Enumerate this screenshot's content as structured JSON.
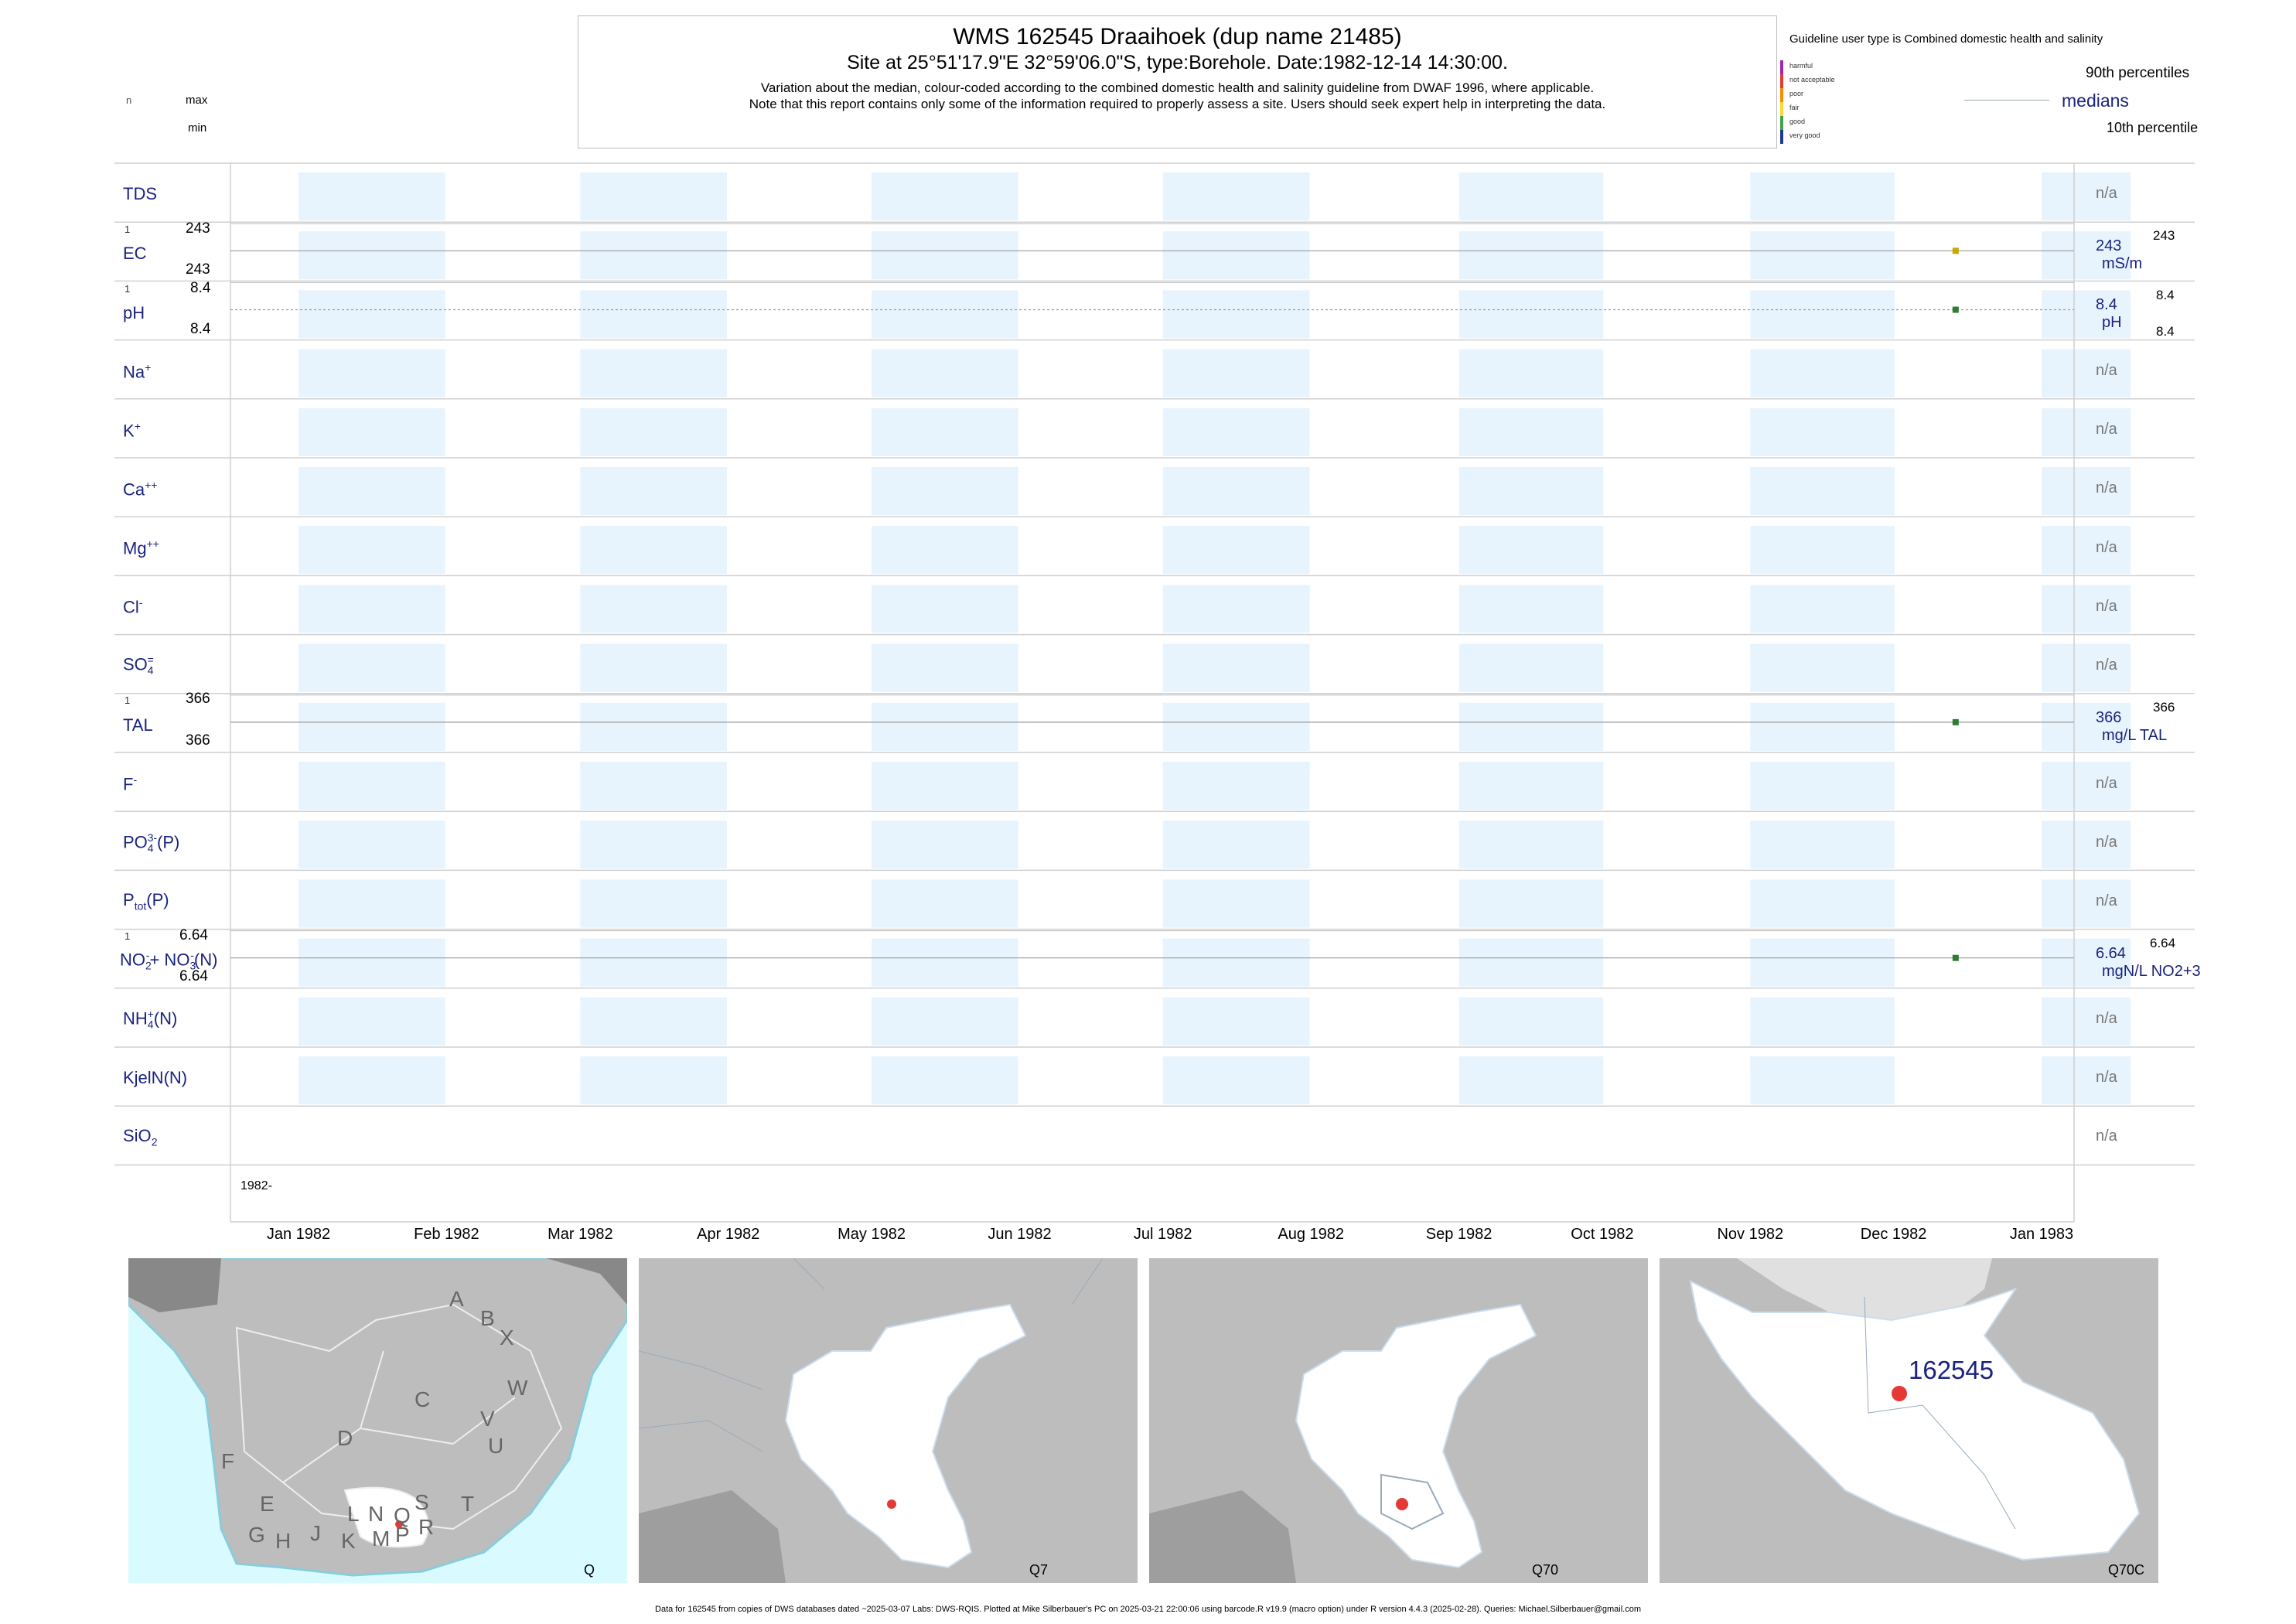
{
  "header": {
    "title": "WMS 162545  Draaihoek (dup name 21485)",
    "subtitle": "Site at 25°51'17.9\"E 32°59'06.0\"S, type:Borehole. Date:1982-12-14 14:30:00.",
    "note1": "Variation about the median,  colour-coded according to the combined domestic health and salinity guideline from DWAF 1996, where applicable.",
    "note2": "Note that this report contains only some of the information required to properly assess a site. Users should seek expert help in interpreting the data."
  },
  "key_left": {
    "n": "n",
    "max": "max",
    "min": "min"
  },
  "legend": {
    "guideline": "Guideline user type is Combined domestic health and salinity",
    "classes": [
      {
        "label": "harmful",
        "color": "#9c27b0"
      },
      {
        "label": "not acceptable",
        "color": "#e53935"
      },
      {
        "label": "poor",
        "color": "#fb8c00"
      },
      {
        "label": "fair",
        "color": "#fdd835"
      },
      {
        "label": "good",
        "color": "#43a047"
      },
      {
        "label": "very good",
        "color": "#1e3a8a"
      }
    ],
    "p90": "90th percentiles",
    "medians": "medians",
    "p10": "10th percentile"
  },
  "rows": {
    "tds": {
      "label": "TDS",
      "na": "n/a"
    },
    "ec": {
      "label": "EC",
      "n": "1",
      "max": "243",
      "min": "243",
      "median": "243",
      "unit": "mS/m",
      "p90": "243"
    },
    "ph": {
      "label": "pH",
      "n": "1",
      "max": "8.4",
      "min": "8.4",
      "median": "8.4",
      "unit": "pH",
      "p90": "8.4",
      "p10": "8.4"
    },
    "na": {
      "label": "Na",
      "sup": "+",
      "na": "n/a"
    },
    "k": {
      "label": "K",
      "sup": "+",
      "na": "n/a"
    },
    "ca": {
      "label": "Ca",
      "sup": "++",
      "na": "n/a"
    },
    "mg": {
      "label": "Mg",
      "sup": "++",
      "na": "n/a"
    },
    "cl": {
      "label": "Cl",
      "sup": "-",
      "na": "n/a"
    },
    "so4": {
      "label": "SO",
      "sub": "4",
      "sup": "=",
      "na": "n/a"
    },
    "tal": {
      "label": "TAL",
      "n": "1",
      "max": "366",
      "min": "366",
      "median": "366",
      "unit": "mg/L TAL",
      "p90": "366"
    },
    "f": {
      "label": "F",
      "sup": "-",
      "na": "n/a"
    },
    "po4": {
      "label": "PO",
      "sub": "4",
      "sup": "3-",
      "tail": "(P)",
      "na": "n/a"
    },
    "ptot": {
      "label": "P",
      "sub": "tot",
      "tail": "(P)",
      "na": "n/a"
    },
    "no23": {
      "label_a": "NO",
      "sub_a": "2",
      "sup_a": "-",
      "label_b": "+ NO",
      "sub_b": "3",
      "sup_b": "-",
      "tail": "(N)",
      "n": "1",
      "max": "6.64",
      "min": "6.64",
      "median": "6.64",
      "unit": "mgN/L NO2+3",
      "p90": "6.64"
    },
    "nh4": {
      "label": "NH",
      "sub": "4",
      "sup": "+",
      "tail": "(N)",
      "na": "n/a"
    },
    "kjeln": {
      "label": "KjelN(N)",
      "na": "n/a"
    },
    "sio2": {
      "label": "SiO",
      "sub": "2",
      "na": "n/a"
    }
  },
  "axis": {
    "year_label": "1982-",
    "months": [
      "Jan 1982",
      "Feb 1982",
      "Mar 1982",
      "Apr 1982",
      "May 1982",
      "Jun 1982",
      "Jul 1982",
      "Aug 1982",
      "Sep 1982",
      "Oct 1982",
      "Nov 1982",
      "Dec 1982",
      "Jan 1983"
    ]
  },
  "chart_data": {
    "type": "scatter",
    "x_type": "date",
    "xlim": [
      "1982-01-01",
      "1983-01-01"
    ],
    "series": [
      {
        "name": "EC",
        "x": [
          "1982-12-14"
        ],
        "y": [
          243
        ],
        "color": "#c8a800"
      },
      {
        "name": "pH",
        "x": [
          "1982-12-14"
        ],
        "y": [
          8.4
        ],
        "color": "#2e7d32"
      },
      {
        "name": "TAL",
        "x": [
          "1982-12-14"
        ],
        "y": [
          366
        ],
        "color": "#2e7d32"
      },
      {
        "name": "NO2+NO3(N)",
        "x": [
          "1982-12-14"
        ],
        "y": [
          6.64
        ],
        "color": "#2e7d32"
      }
    ]
  },
  "maps": [
    {
      "label": "Q",
      "regions": [
        "A",
        "B",
        "X",
        "W",
        "C",
        "V",
        "U",
        "D",
        "T",
        "F",
        "E",
        "G",
        "H",
        "J",
        "K",
        "L",
        "M",
        "N",
        "P",
        "Q",
        "R",
        "S"
      ]
    },
    {
      "label": "Q7"
    },
    {
      "label": "Q70"
    },
    {
      "label": "Q70C",
      "site": "162545"
    }
  ],
  "footer": "Data for 162545 from copies of DWS databases dated ~2025-03-07 Labs: DWS-RQIS. Plotted at Mike Silberbauer's PC on 2025-03-21 22:00:06 using barcode.R v19.9 (macro option) under R version 4.4.3 (2025-02-28). Queries: Michael.Silberbauer@gmail.com"
}
